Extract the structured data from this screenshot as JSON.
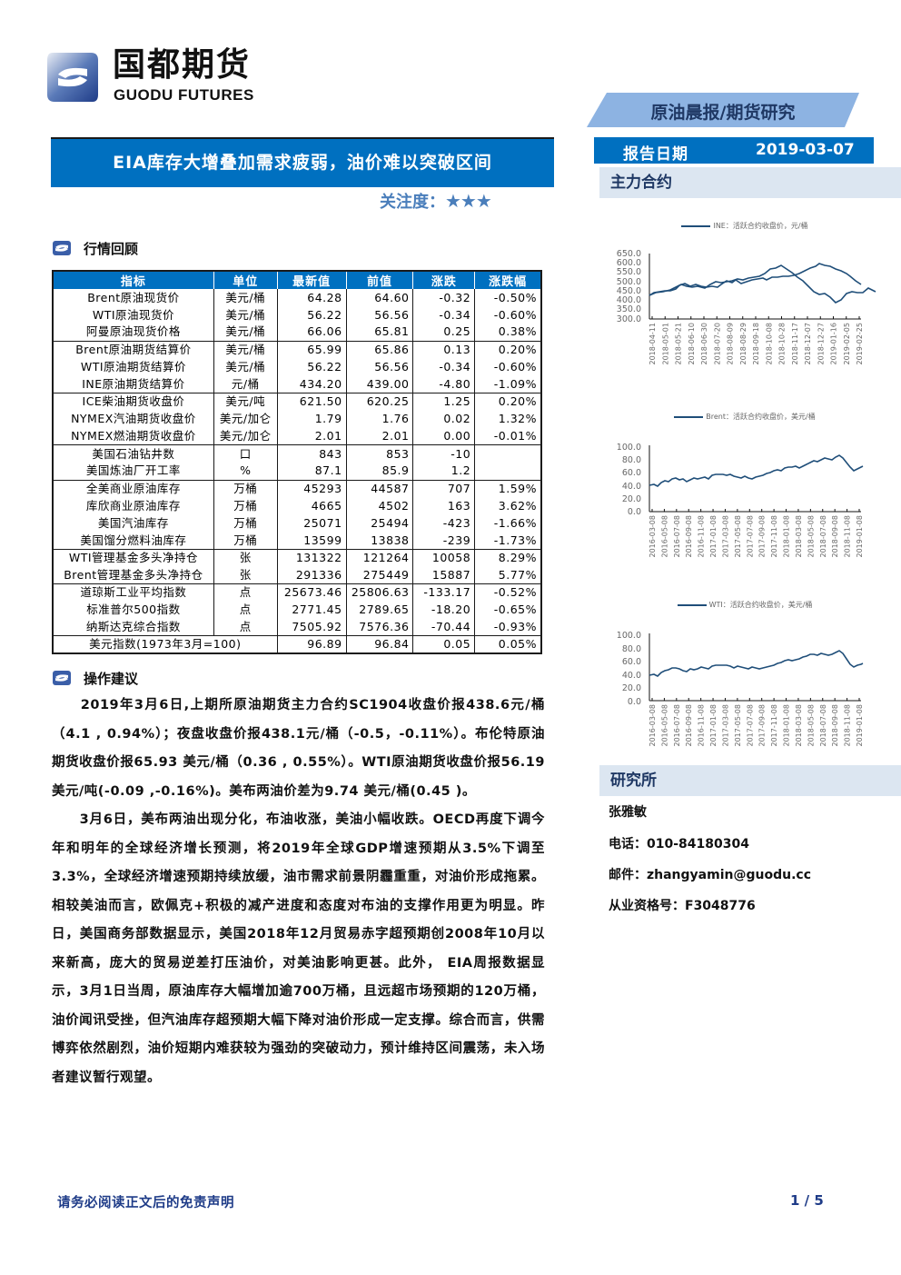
{
  "logo": {
    "cn": "国都期货",
    "en": "GUODU FUTURES"
  },
  "header": {
    "report_type": "原油晨报/期货研究",
    "report_date_label": "报告日期",
    "report_date": "2019-03-07",
    "title": "EIA库存大增叠加需求疲弱，油价难以突破区间",
    "attention_label": "关注度：",
    "attention_stars": "★★★"
  },
  "sections": {
    "market_review": "行情回顾",
    "operation_advice": "操作建议",
    "main_contract": "主力合约",
    "research": "研究所"
  },
  "table": {
    "headers": [
      "指标",
      "单位",
      "最新值",
      "前值",
      "涨跌",
      "涨跌幅"
    ],
    "rows": [
      [
        "Brent原油现货价",
        "美元/桶",
        "64.28",
        "64.60",
        "-0.32",
        "-0.50%"
      ],
      [
        "WTI原油现货价",
        "美元/桶",
        "56.22",
        "56.56",
        "-0.34",
        "-0.60%"
      ],
      [
        "阿曼原油现货价格",
        "美元/桶",
        "66.06",
        "65.81",
        "0.25",
        "0.38%"
      ],
      [
        "Brent原油期货结算价",
        "美元/桶",
        "65.99",
        "65.86",
        "0.13",
        "0.20%"
      ],
      [
        "WTI原油期货结算价",
        "美元/桶",
        "56.22",
        "56.56",
        "-0.34",
        "-0.60%"
      ],
      [
        "INE原油期货结算价",
        "元/桶",
        "434.20",
        "439.00",
        "-4.80",
        "-1.09%"
      ],
      [
        "ICE柴油期货收盘价",
        "美元/吨",
        "621.50",
        "620.25",
        "1.25",
        "0.20%"
      ],
      [
        "NYMEX汽油期货收盘价",
        "美元/加仑",
        "1.79",
        "1.76",
        "0.02",
        "1.32%"
      ],
      [
        "NYMEX燃油期货收盘价",
        "美元/加仑",
        "2.01",
        "2.01",
        "0.00",
        "-0.01%"
      ],
      [
        "美国石油钻井数",
        "口",
        "843",
        "853",
        "-10",
        ""
      ],
      [
        "美国炼油厂开工率",
        "%",
        "87.1",
        "85.9",
        "1.2",
        ""
      ],
      [
        "全美商业原油库存",
        "万桶",
        "45293",
        "44587",
        "707",
        "1.59%"
      ],
      [
        "库欣商业原油库存",
        "万桶",
        "4665",
        "4502",
        "163",
        "3.62%"
      ],
      [
        "美国汽油库存",
        "万桶",
        "25071",
        "25494",
        "-423",
        "-1.66%"
      ],
      [
        "美国馏分燃料油库存",
        "万桶",
        "13599",
        "13838",
        "-239",
        "-1.73%"
      ],
      [
        "WTI管理基金多头净持仓",
        "张",
        "131322",
        "121264",
        "10058",
        "8.29%"
      ],
      [
        "Brent管理基金多头净持仓",
        "张",
        "291336",
        "275449",
        "15887",
        "5.77%"
      ],
      [
        "道琼斯工业平均指数",
        "点",
        "25673.46",
        "25806.63",
        "-133.17",
        "-0.52%"
      ],
      [
        "标准普尔500指数",
        "点",
        "2771.45",
        "2789.65",
        "-18.20",
        "-0.65%"
      ],
      [
        "纳斯达克综合指数",
        "点",
        "7505.92",
        "7576.36",
        "-70.44",
        "-0.93%"
      ],
      [
        "美元指数(1973年3月=100)",
        "",
        "96.89",
        "96.84",
        "0.05",
        "0.05%"
      ]
    ]
  },
  "paragraphs": [
    "　　2019年3月6日,上期所原油期货主力合约SC1904收盘价报438.6元/桶（4.1 , 0.94%）；夜盘收盘价报438.1元/桶（-0.5，-0.11%）。布伦特原油期货收盘价报65.93 美元/桶（0.36 , 0.55%）。WTI原油期货收盘价报56.19 美元/吨(-0.09 ,-0.16%)。美布两油价差为9.74 美元/桶(0.45 )。",
    "　　3月6日，美布两油出现分化，布油收涨，美油小幅收跌。OECD再度下调今年和明年的全球经济增长预测，将2019年全球GDP增速预期从3.5%下调至 3.3%，全球经济增速预期持续放缓，油市需求前景阴霾重重，对油价形成拖累。相较美油而言，欧佩克+积极的减产进度和态度对布油的支撑作用更为明显。昨日，美国商务部数据显示，美国2018年12月贸易赤字超预期创2008年10月以来新高，庞大的贸易逆差打压油价，对美油影响更甚。此外， EIA周报数据显示，3月1日当周，原油库存大幅增加逾700万桶，且远超市场预期的120万桶，油价闻讯受挫，但汽油库存超预期大幅下降对油价形成一定支撑。综合而言，供需博弈依然剧烈，油价短期内难获较为强劲的突破动力，预计维持区间震荡，未入场者建议暂行观望。"
  ],
  "contact": {
    "name": "张雅敏",
    "phone": "电话：010-84180304",
    "email": "邮件：zhangyamin@guodu.cc",
    "license": "从业资格号：F3048776"
  },
  "footer": {
    "disclaimer": "请务必阅读正文后的免责声明",
    "page": "1 / 5"
  },
  "colors": {
    "primary_blue": "#0070c0",
    "light_blue_banner": "#8db3e2",
    "section_bg": "#dce6f1",
    "line_color": "#1f4e79",
    "accent_text": "#1f3864"
  },
  "chart_data": [
    {
      "type": "line",
      "title": "",
      "legend": "INE：活跃合约收盘价，元/桶",
      "xlabel": "",
      "ylabel": "",
      "ylim": [
        300,
        650
      ],
      "yticks": [
        "650.0",
        "600.0",
        "550.0",
        "500.0",
        "450.0",
        "400.0",
        "350.0",
        "300.0"
      ],
      "x": [
        "2018-04-11",
        "2018-05-01",
        "2018-05-21",
        "2018-06-10",
        "2018-06-30",
        "2018-07-20",
        "2018-08-09",
        "2018-08-29",
        "2018-09-18",
        "2018-10-08",
        "2018-10-28",
        "2018-11-17",
        "2018-12-07",
        "2018-12-27",
        "2019-01-16",
        "2019-02-05",
        "2019-02-25"
      ],
      "series": [
        {
          "name": "INE",
          "values": [
            430,
            450,
            485,
            470,
            505,
            490,
            515,
            520,
            545,
            585,
            540,
            450,
            425,
            370,
            430,
            430,
            440
          ]
        }
      ],
      "grid": false
    },
    {
      "type": "line",
      "title": "",
      "legend": "Brent：活跃合约收盘价，美元/桶",
      "xlabel": "",
      "ylabel": "",
      "ylim": [
        0,
        100
      ],
      "yticks": [
        "100.0",
        "80.0",
        "60.0",
        "40.0",
        "20.0",
        "0.0"
      ],
      "x": [
        "2016-03-08",
        "2016-05-08",
        "2016-07-08",
        "2016-09-08",
        "2016-11-08",
        "2017-01-08",
        "2017-03-08",
        "2017-05-08",
        "2017-07-08",
        "2017-09-08",
        "2017-11-08",
        "2018-01-08",
        "2018-03-08",
        "2018-05-08",
        "2018-07-08",
        "2018-09-08",
        "2018-11-08",
        "2019-01-08"
      ],
      "series": [
        {
          "name": "Brent",
          "values": [
            40,
            47,
            47,
            48,
            46,
            56,
            53,
            50,
            48,
            55,
            62,
            69,
            65,
            77,
            74,
            80,
            60,
            60
          ]
        }
      ],
      "grid": false
    },
    {
      "type": "line",
      "title": "",
      "legend": "WTI：活跃合约收盘价，美元/桶",
      "xlabel": "",
      "ylabel": "",
      "ylim": [
        0,
        100
      ],
      "yticks": [
        "100.0",
        "80.0",
        "60.0",
        "40.0",
        "20.0",
        "0.0"
      ],
      "x": [
        "2016-03-08",
        "2016-05-08",
        "2016-07-08",
        "2016-09-08",
        "2016-11-08",
        "2017-01-08",
        "2017-03-08",
        "2017-05-08",
        "2017-07-08",
        "2017-09-08",
        "2017-11-08",
        "2018-01-08",
        "2018-03-08",
        "2018-05-08",
        "2018-07-08",
        "2018-09-08",
        "2018-11-08",
        "2019-01-08"
      ],
      "series": [
        {
          "name": "WTI",
          "values": [
            38,
            46,
            45,
            45,
            45,
            53,
            50,
            47,
            45,
            50,
            57,
            63,
            62,
            70,
            70,
            70,
            55,
            52
          ]
        }
      ],
      "grid": false
    }
  ]
}
